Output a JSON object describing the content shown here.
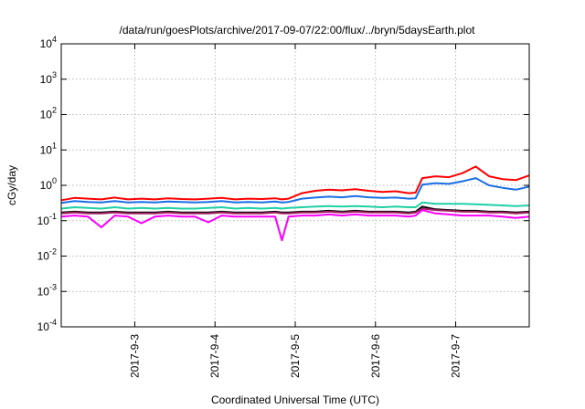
{
  "chart_data": {
    "type": "line",
    "title": "/data/run/goesPlots/archive/2017-09-07/22:00/flux/../bryn/5daysEarth.plot",
    "xlabel": "Coordinated Universal Time (UTC)",
    "ylabel": "cGy/day",
    "yscale": "log",
    "ylim": [
      0.0001,
      10000
    ],
    "xlim": [
      "2017-09-02T02:00",
      "2017-09-07T22:00"
    ],
    "grid": true,
    "legend": "none",
    "x_ticks": [
      {
        "value": "2017-09-03T00:00",
        "label": "2017-9-3"
      },
      {
        "value": "2017-09-04T00:00",
        "label": "2017-9-4"
      },
      {
        "value": "2017-09-05T00:00",
        "label": "2017-9-5"
      },
      {
        "value": "2017-09-06T00:00",
        "label": "2017-9-6"
      },
      {
        "value": "2017-09-07T00:00",
        "label": "2017-9-7"
      }
    ],
    "y_ticks": [
      {
        "value": 0.0001,
        "base": "10",
        "exp": "-4"
      },
      {
        "value": 0.001,
        "base": "10",
        "exp": "-3"
      },
      {
        "value": 0.01,
        "base": "10",
        "exp": "-2"
      },
      {
        "value": 0.1,
        "base": "10",
        "exp": "-1"
      },
      {
        "value": 1,
        "base": "10",
        "exp": "0"
      },
      {
        "value": 10,
        "base": "10",
        "exp": "1"
      },
      {
        "value": 100,
        "base": "10",
        "exp": "2"
      },
      {
        "value": 1000,
        "base": "10",
        "exp": "3"
      },
      {
        "value": 10000,
        "base": "10",
        "exp": "4"
      }
    ],
    "x": [
      "2017-09-02T02:00",
      "2017-09-02T06:00",
      "2017-09-02T10:00",
      "2017-09-02T14:00",
      "2017-09-02T18:00",
      "2017-09-02T22:00",
      "2017-09-03T02:00",
      "2017-09-03T06:00",
      "2017-09-03T10:00",
      "2017-09-03T14:00",
      "2017-09-03T18:00",
      "2017-09-03T22:00",
      "2017-09-04T02:00",
      "2017-09-04T06:00",
      "2017-09-04T10:00",
      "2017-09-04T14:00",
      "2017-09-04T18:00",
      "2017-09-04T20:00",
      "2017-09-04T22:00",
      "2017-09-05T02:00",
      "2017-09-05T06:00",
      "2017-09-05T10:00",
      "2017-09-05T14:00",
      "2017-09-05T18:00",
      "2017-09-05T22:00",
      "2017-09-06T02:00",
      "2017-09-06T06:00",
      "2017-09-06T10:00",
      "2017-09-06T12:00",
      "2017-09-06T14:00",
      "2017-09-06T18:00",
      "2017-09-06T22:00",
      "2017-09-07T02:00",
      "2017-09-07T06:00",
      "2017-09-07T10:00",
      "2017-09-07T14:00",
      "2017-09-07T18:00",
      "2017-09-07T22:00"
    ],
    "series": [
      {
        "color": "#ff0000",
        "values": [
          0.38,
          0.44,
          0.42,
          0.4,
          0.45,
          0.4,
          0.42,
          0.4,
          0.43,
          0.41,
          0.4,
          0.42,
          0.44,
          0.4,
          0.42,
          0.41,
          0.43,
          0.4,
          0.42,
          0.6,
          0.7,
          0.75,
          0.72,
          0.78,
          0.7,
          0.65,
          0.68,
          0.6,
          0.62,
          1.6,
          1.8,
          1.7,
          2.2,
          3.4,
          1.8,
          1.5,
          1.4,
          1.9
        ]
      },
      {
        "color": "#1a6fe6",
        "values": [
          0.32,
          0.36,
          0.34,
          0.33,
          0.36,
          0.33,
          0.34,
          0.33,
          0.35,
          0.34,
          0.33,
          0.34,
          0.36,
          0.33,
          0.34,
          0.33,
          0.35,
          0.33,
          0.34,
          0.42,
          0.45,
          0.48,
          0.46,
          0.5,
          0.46,
          0.44,
          0.45,
          0.42,
          0.43,
          1.05,
          1.15,
          1.1,
          1.3,
          1.6,
          1.0,
          0.85,
          0.75,
          0.92
        ]
      },
      {
        "color": "#1fd0a6",
        "values": [
          0.22,
          0.24,
          0.23,
          0.22,
          0.24,
          0.22,
          0.23,
          0.22,
          0.23,
          0.22,
          0.22,
          0.23,
          0.24,
          0.22,
          0.23,
          0.22,
          0.23,
          0.22,
          0.23,
          0.24,
          0.25,
          0.26,
          0.25,
          0.26,
          0.25,
          0.24,
          0.25,
          0.24,
          0.24,
          0.33,
          0.3,
          0.3,
          0.3,
          0.29,
          0.28,
          0.27,
          0.26,
          0.27
        ]
      },
      {
        "color": "#000000",
        "values": [
          0.17,
          0.18,
          0.17,
          0.17,
          0.18,
          0.17,
          0.17,
          0.17,
          0.18,
          0.17,
          0.17,
          0.17,
          0.18,
          0.17,
          0.17,
          0.17,
          0.18,
          0.17,
          0.17,
          0.18,
          0.18,
          0.19,
          0.18,
          0.19,
          0.18,
          0.18,
          0.18,
          0.17,
          0.18,
          0.25,
          0.21,
          0.2,
          0.19,
          0.19,
          0.18,
          0.18,
          0.17,
          0.18
        ]
      },
      {
        "color": "#a02060",
        "values": [
          0.16,
          0.17,
          0.16,
          0.16,
          0.17,
          0.16,
          0.16,
          0.16,
          0.17,
          0.16,
          0.16,
          0.16,
          0.17,
          0.16,
          0.16,
          0.16,
          0.17,
          0.16,
          0.16,
          0.17,
          0.17,
          0.18,
          0.17,
          0.18,
          0.17,
          0.17,
          0.17,
          0.16,
          0.17,
          0.22,
          0.2,
          0.19,
          0.18,
          0.18,
          0.17,
          0.17,
          0.16,
          0.17
        ]
      },
      {
        "color": "#ff00ff",
        "values": [
          0.13,
          0.14,
          0.13,
          0.065,
          0.14,
          0.13,
          0.085,
          0.13,
          0.14,
          0.13,
          0.13,
          0.09,
          0.14,
          0.13,
          0.13,
          0.13,
          0.13,
          0.028,
          0.13,
          0.14,
          0.14,
          0.15,
          0.14,
          0.15,
          0.14,
          0.14,
          0.14,
          0.13,
          0.14,
          0.2,
          0.16,
          0.15,
          0.14,
          0.14,
          0.14,
          0.13,
          0.12,
          0.13
        ]
      }
    ]
  }
}
